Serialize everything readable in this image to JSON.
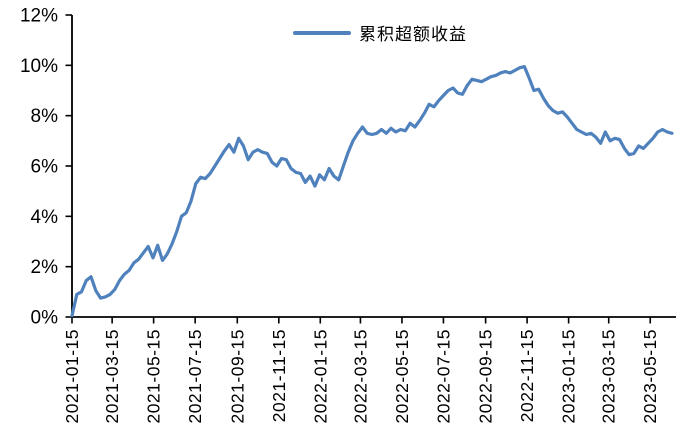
{
  "chart_data": {
    "type": "line",
    "title": "",
    "legend": "累积超额收益",
    "legend_position": "top-center",
    "grid": false,
    "background": "#FFFFFF",
    "line_color": "#4F81BD",
    "axis_color": "#000000",
    "text_color": "#000000",
    "ylim": [
      0,
      12
    ],
    "ytick_labels": [
      "0%",
      "2%",
      "4%",
      "6%",
      "8%",
      "10%",
      "12%"
    ],
    "x_tick_labels": [
      "2021-01-15",
      "2021-03-15",
      "2021-05-15",
      "2021-07-15",
      "2021-09-15",
      "2021-11-15",
      "2022-01-15",
      "2022-03-15",
      "2022-05-15",
      "2022-07-15",
      "2022-09-15",
      "2022-11-15",
      "2023-01-15",
      "2023-03-15",
      "2023-05-15"
    ],
    "x_tick_positions_weeks": [
      0,
      8.43,
      17.14,
      25.86,
      34.71,
      43.43,
      52.14,
      60.57,
      69.29,
      78.0,
      86.86,
      95.57,
      104.29,
      112.71,
      121.43
    ],
    "series": [
      {
        "name": "累积超额收益",
        "unit": "percent",
        "cadence": "weekly",
        "values": [
          0.05,
          0.9,
          1.0,
          1.45,
          1.6,
          1.05,
          0.75,
          0.8,
          0.9,
          1.1,
          1.45,
          1.7,
          1.85,
          2.15,
          2.3,
          2.55,
          2.8,
          2.35,
          2.85,
          2.25,
          2.5,
          2.9,
          3.4,
          4.0,
          4.15,
          4.6,
          5.3,
          5.55,
          5.5,
          5.7,
          6.0,
          6.3,
          6.6,
          6.85,
          6.55,
          7.1,
          6.8,
          6.25,
          6.55,
          6.65,
          6.55,
          6.5,
          6.15,
          6.0,
          6.3,
          6.25,
          5.9,
          5.75,
          5.7,
          5.35,
          5.6,
          5.2,
          5.65,
          5.45,
          5.9,
          5.6,
          5.45,
          6.0,
          6.55,
          7.0,
          7.3,
          7.55,
          7.3,
          7.25,
          7.3,
          7.45,
          7.3,
          7.5,
          7.35,
          7.45,
          7.4,
          7.7,
          7.55,
          7.8,
          8.1,
          8.45,
          8.35,
          8.6,
          8.8,
          9.0,
          9.1,
          8.9,
          8.85,
          9.2,
          9.45,
          9.4,
          9.35,
          9.45,
          9.55,
          9.6,
          9.7,
          9.75,
          9.7,
          9.8,
          9.9,
          9.95,
          9.5,
          9.0,
          9.05,
          8.7,
          8.4,
          8.2,
          8.1,
          8.15,
          7.95,
          7.7,
          7.45,
          7.35,
          7.25,
          7.3,
          7.15,
          6.9,
          7.35,
          7.0,
          7.1,
          7.05,
          6.7,
          6.45,
          6.5,
          6.8,
          6.7,
          6.9,
          7.1,
          7.35,
          7.45,
          7.35,
          7.3
        ]
      }
    ]
  }
}
